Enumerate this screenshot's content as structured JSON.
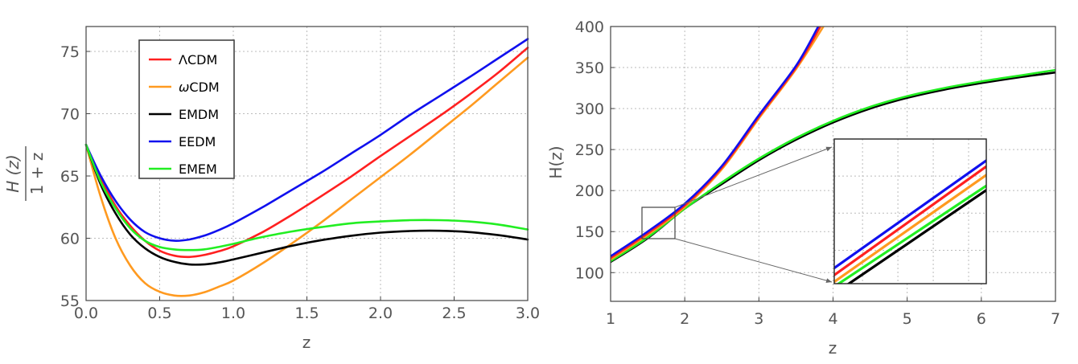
{
  "chart_data": [
    {
      "type": "line",
      "xlabel": "z",
      "ylabel": "H (z) / 1 + z",
      "ylabel_numerator": "H (z)",
      "ylabel_denominator": "1 + z",
      "xlim": [
        0,
        3
      ],
      "ylim": [
        55,
        77
      ],
      "x_ticks": [
        "0.0",
        "0.5",
        "1.0",
        "1.5",
        "2.0",
        "2.5",
        "3.0"
      ],
      "y_ticks": [
        "55",
        "60",
        "65",
        "70",
        "75"
      ],
      "grid": true,
      "legend_position": "top-left",
      "series": [
        {
          "name": "ΛCDM",
          "color": "#ff2020",
          "points": [
            [
              0,
              67.5
            ],
            [
              0.1,
              64.8
            ],
            [
              0.2,
              62.6
            ],
            [
              0.3,
              61.0
            ],
            [
              0.4,
              59.8
            ],
            [
              0.5,
              59.0
            ],
            [
              0.6,
              58.6
            ],
            [
              0.7,
              58.5
            ],
            [
              0.8,
              58.65
            ],
            [
              0.9,
              58.95
            ],
            [
              1.0,
              59.35
            ],
            [
              1.2,
              60.5
            ],
            [
              1.4,
              61.9
            ],
            [
              1.6,
              63.4
            ],
            [
              1.8,
              64.95
            ],
            [
              2.0,
              66.6
            ],
            [
              2.2,
              68.2
            ],
            [
              2.4,
              69.8
            ],
            [
              2.6,
              71.5
            ],
            [
              2.8,
              73.3
            ],
            [
              3.0,
              75.3
            ]
          ]
        },
        {
          "name": "ωCDM",
          "color": "#ff9a20",
          "points": [
            [
              0,
              67.5
            ],
            [
              0.1,
              63.3
            ],
            [
              0.2,
              60.0
            ],
            [
              0.3,
              57.8
            ],
            [
              0.4,
              56.4
            ],
            [
              0.5,
              55.7
            ],
            [
              0.6,
              55.4
            ],
            [
              0.7,
              55.4
            ],
            [
              0.8,
              55.65
            ],
            [
              0.9,
              56.1
            ],
            [
              1.0,
              56.6
            ],
            [
              1.2,
              58.0
            ],
            [
              1.4,
              59.6
            ],
            [
              1.6,
              61.3
            ],
            [
              1.8,
              63.1
            ],
            [
              2.0,
              64.9
            ],
            [
              2.2,
              66.7
            ],
            [
              2.4,
              68.6
            ],
            [
              2.6,
              70.5
            ],
            [
              2.8,
              72.5
            ],
            [
              3.0,
              74.5
            ]
          ]
        },
        {
          "name": "EMDM",
          "color": "#000000",
          "points": [
            [
              0,
              67.5
            ],
            [
              0.1,
              64.3
            ],
            [
              0.2,
              62.0
            ],
            [
              0.3,
              60.3
            ],
            [
              0.4,
              59.2
            ],
            [
              0.5,
              58.5
            ],
            [
              0.6,
              58.1
            ],
            [
              0.7,
              57.9
            ],
            [
              0.8,
              57.9
            ],
            [
              0.9,
              58.05
            ],
            [
              1.0,
              58.3
            ],
            [
              1.2,
              58.85
            ],
            [
              1.4,
              59.4
            ],
            [
              1.6,
              59.85
            ],
            [
              1.8,
              60.2
            ],
            [
              2.0,
              60.45
            ],
            [
              2.2,
              60.58
            ],
            [
              2.4,
              60.6
            ],
            [
              2.6,
              60.5
            ],
            [
              2.8,
              60.25
            ],
            [
              3.0,
              59.9
            ]
          ]
        },
        {
          "name": "EEDM",
          "color": "#1010ee",
          "points": [
            [
              0,
              67.5
            ],
            [
              0.1,
              65.0
            ],
            [
              0.2,
              63.0
            ],
            [
              0.3,
              61.5
            ],
            [
              0.4,
              60.5
            ],
            [
              0.5,
              60.0
            ],
            [
              0.6,
              59.8
            ],
            [
              0.7,
              59.9
            ],
            [
              0.8,
              60.2
            ],
            [
              0.9,
              60.65
            ],
            [
              1.0,
              61.2
            ],
            [
              1.2,
              62.5
            ],
            [
              1.4,
              63.9
            ],
            [
              1.6,
              65.3
            ],
            [
              1.8,
              66.8
            ],
            [
              2.0,
              68.3
            ],
            [
              2.2,
              69.9
            ],
            [
              2.4,
              71.4
            ],
            [
              2.6,
              72.9
            ],
            [
              2.8,
              74.45
            ],
            [
              3.0,
              76.0
            ]
          ]
        },
        {
          "name": "EMEM",
          "color": "#22ee22",
          "points": [
            [
              0,
              67.5
            ],
            [
              0.1,
              64.5
            ],
            [
              0.2,
              62.4
            ],
            [
              0.3,
              60.8
            ],
            [
              0.4,
              59.8
            ],
            [
              0.5,
              59.3
            ],
            [
              0.6,
              59.1
            ],
            [
              0.7,
              59.05
            ],
            [
              0.8,
              59.1
            ],
            [
              0.9,
              59.3
            ],
            [
              1.0,
              59.55
            ],
            [
              1.2,
              60.1
            ],
            [
              1.4,
              60.55
            ],
            [
              1.6,
              60.9
            ],
            [
              1.8,
              61.2
            ],
            [
              2.0,
              61.35
            ],
            [
              2.2,
              61.45
            ],
            [
              2.4,
              61.45
            ],
            [
              2.6,
              61.35
            ],
            [
              2.8,
              61.1
            ],
            [
              3.0,
              60.7
            ]
          ]
        }
      ]
    },
    {
      "type": "line",
      "xlabel": "z",
      "ylabel": "H(z)",
      "xlim": [
        1,
        7
      ],
      "ylim": [
        65,
        400
      ],
      "x_ticks": [
        "1",
        "2",
        "3",
        "4",
        "5",
        "6",
        "7"
      ],
      "y_ticks": [
        "100",
        "150",
        "200",
        "250",
        "300",
        "350",
        "400"
      ],
      "grid": true,
      "series": [
        {
          "name": "ΛCDM",
          "color": "#ff2020",
          "points": [
            [
              1,
              118
            ],
            [
              1.5,
              148
            ],
            [
              2,
              182
            ],
            [
              2.5,
              228
            ],
            [
              3,
              290
            ],
            [
              3.5,
              350
            ],
            [
              3.83,
              400
            ]
          ]
        },
        {
          "name": "ωCDM",
          "color": "#ff9a20",
          "points": [
            [
              1,
              116
            ],
            [
              1.5,
              146
            ],
            [
              2,
              180
            ],
            [
              2.5,
              226
            ],
            [
              3,
              288
            ],
            [
              3.5,
              348
            ],
            [
              3.87,
              400
            ]
          ]
        },
        {
          "name": "EMDM",
          "color": "#000000",
          "points": [
            [
              1,
              113
            ],
            [
              1.5,
              142
            ],
            [
              2,
              178
            ],
            [
              2.5,
              208
            ],
            [
              3,
              237
            ],
            [
              3.5,
              262
            ],
            [
              4,
              283
            ],
            [
              4.5,
              300
            ],
            [
              5,
              313
            ],
            [
              5.5,
              323
            ],
            [
              6,
              331
            ],
            [
              6.5,
              338
            ],
            [
              7,
              344
            ]
          ]
        },
        {
          "name": "EEDM",
          "color": "#1010ee",
          "points": [
            [
              1,
              120
            ],
            [
              1.5,
              150
            ],
            [
              2,
              184
            ],
            [
              2.5,
              230
            ],
            [
              3,
              292
            ],
            [
              3.5,
              352
            ],
            [
              3.8,
              400
            ]
          ]
        },
        {
          "name": "EMEM",
          "color": "#22ee22",
          "points": [
            [
              1,
              114
            ],
            [
              1.5,
              143
            ],
            [
              2,
              178
            ],
            [
              2.5,
              210
            ],
            [
              3,
              239
            ],
            [
              3.5,
              264
            ],
            [
              4,
              285
            ],
            [
              4.5,
              302
            ],
            [
              5,
              315
            ],
            [
              5.5,
              325
            ],
            [
              6,
              333
            ],
            [
              6.5,
              340
            ],
            [
              7,
              347
            ]
          ]
        }
      ],
      "inset": {
        "zoom_region": {
          "x": [
            1.42,
            1.85
          ],
          "y": [
            141,
            180
          ]
        }
      }
    }
  ]
}
